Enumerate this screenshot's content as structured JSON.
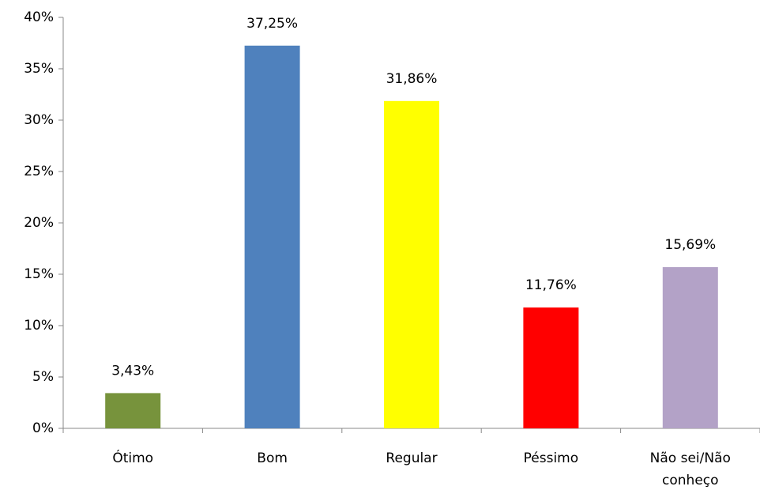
{
  "chart_data": {
    "type": "bar",
    "categories": [
      "Ótimo",
      "Bom",
      "Regular",
      "Péssimo",
      "Não sei/Não conheço"
    ],
    "values": [
      3.43,
      37.25,
      31.86,
      11.76,
      15.69
    ],
    "value_labels": [
      "3,43%",
      "37,25%",
      "31,86%",
      "11,76%",
      "15,69%"
    ],
    "colors": [
      "#77933c",
      "#4f81bd",
      "#ffff00",
      "#ff0000",
      "#b3a2c7"
    ],
    "ylim": [
      0,
      40
    ],
    "yticks": [
      {
        "value": 0,
        "label": "0%"
      },
      {
        "value": 5,
        "label": "5%"
      },
      {
        "value": 10,
        "label": "10%"
      },
      {
        "value": 15,
        "label": "15%"
      },
      {
        "value": 20,
        "label": "20%"
      },
      {
        "value": 25,
        "label": "25%"
      },
      {
        "value": 30,
        "label": "30%"
      },
      {
        "value": 35,
        "label": "35%"
      },
      {
        "value": 40,
        "label": "40%"
      }
    ],
    "grid": false
  }
}
